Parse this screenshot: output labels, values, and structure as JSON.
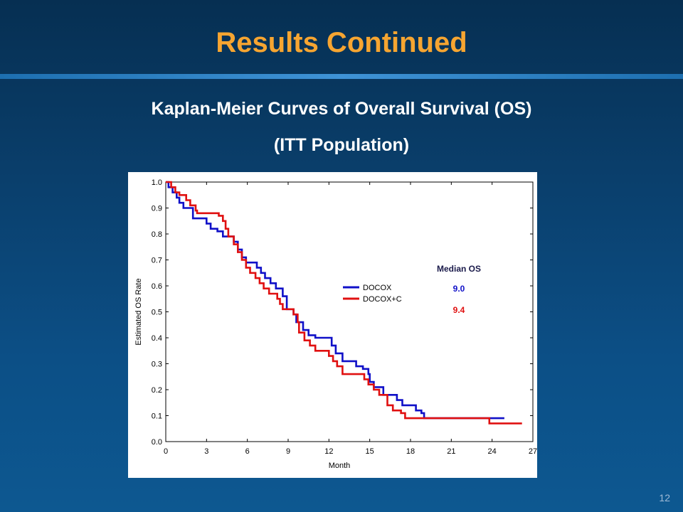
{
  "slide": {
    "title": "Results Continued",
    "subtitle_line1": "Kaplan-Meier Curves of Overall Survival (OS)",
    "subtitle_line2": "(ITT Population)",
    "page_number": "12"
  },
  "colors": {
    "title": "#f6a531",
    "docox": "#1010c8",
    "docox_c": "#e01010"
  },
  "chart_data": {
    "type": "line",
    "step": true,
    "xlabel": "Month",
    "ylabel": "Estimated OS Rate",
    "xlim": [
      0,
      27
    ],
    "ylim": [
      0,
      1
    ],
    "xticks": [
      "0",
      "3",
      "6",
      "9",
      "12",
      "15",
      "18",
      "21",
      "24",
      "27"
    ],
    "yticks": [
      "0.0",
      "0.1",
      "0.2",
      "0.3",
      "0.4",
      "0.5",
      "0.6",
      "0.7",
      "0.8",
      "0.9",
      "1.0"
    ],
    "legend": {
      "position": "right-middle",
      "median_header": "Median OS"
    },
    "series": [
      {
        "name": "DOCOX",
        "median": "9.0",
        "color": "#1010c8",
        "points": [
          [
            0,
            1.0
          ],
          [
            0.2,
            0.98
          ],
          [
            0.5,
            0.96
          ],
          [
            0.8,
            0.94
          ],
          [
            1.0,
            0.92
          ],
          [
            1.3,
            0.9
          ],
          [
            2.0,
            0.86
          ],
          [
            3.0,
            0.84
          ],
          [
            3.3,
            0.82
          ],
          [
            3.8,
            0.81
          ],
          [
            4.2,
            0.79
          ],
          [
            5.0,
            0.77
          ],
          [
            5.3,
            0.74
          ],
          [
            5.6,
            0.71
          ],
          [
            5.9,
            0.69
          ],
          [
            6.7,
            0.67
          ],
          [
            7.0,
            0.65
          ],
          [
            7.3,
            0.63
          ],
          [
            7.7,
            0.61
          ],
          [
            8.1,
            0.59
          ],
          [
            8.6,
            0.56
          ],
          [
            8.9,
            0.51
          ],
          [
            9.4,
            0.49
          ],
          [
            9.6,
            0.46
          ],
          [
            10.1,
            0.43
          ],
          [
            10.5,
            0.41
          ],
          [
            11.0,
            0.4
          ],
          [
            12.2,
            0.37
          ],
          [
            12.5,
            0.34
          ],
          [
            13.0,
            0.31
          ],
          [
            14.0,
            0.29
          ],
          [
            14.5,
            0.28
          ],
          [
            14.9,
            0.26
          ],
          [
            15.0,
            0.23
          ],
          [
            15.3,
            0.21
          ],
          [
            16.0,
            0.18
          ],
          [
            17.0,
            0.16
          ],
          [
            17.4,
            0.14
          ],
          [
            18.4,
            0.12
          ],
          [
            18.8,
            0.11
          ],
          [
            19.0,
            0.09
          ],
          [
            24.9,
            0.09
          ]
        ]
      },
      {
        "name": "DOCOX+C",
        "median": "9.4",
        "color": "#e01010",
        "points": [
          [
            0,
            1.0
          ],
          [
            0.4,
            0.98
          ],
          [
            0.7,
            0.96
          ],
          [
            1.0,
            0.95
          ],
          [
            1.5,
            0.93
          ],
          [
            1.8,
            0.91
          ],
          [
            2.2,
            0.89
          ],
          [
            2.3,
            0.88
          ],
          [
            3.9,
            0.87
          ],
          [
            4.2,
            0.85
          ],
          [
            4.4,
            0.82
          ],
          [
            4.6,
            0.79
          ],
          [
            5.0,
            0.76
          ],
          [
            5.3,
            0.73
          ],
          [
            5.6,
            0.7
          ],
          [
            5.9,
            0.67
          ],
          [
            6.2,
            0.65
          ],
          [
            6.6,
            0.63
          ],
          [
            6.9,
            0.61
          ],
          [
            7.2,
            0.59
          ],
          [
            7.6,
            0.57
          ],
          [
            8.2,
            0.55
          ],
          [
            8.4,
            0.53
          ],
          [
            8.6,
            0.51
          ],
          [
            9.4,
            0.49
          ],
          [
            9.7,
            0.46
          ],
          [
            9.8,
            0.42
          ],
          [
            10.2,
            0.39
          ],
          [
            10.6,
            0.37
          ],
          [
            11.0,
            0.35
          ],
          [
            12.0,
            0.33
          ],
          [
            12.3,
            0.31
          ],
          [
            12.6,
            0.29
          ],
          [
            13.0,
            0.26
          ],
          [
            14.6,
            0.24
          ],
          [
            14.9,
            0.22
          ],
          [
            15.3,
            0.2
          ],
          [
            15.7,
            0.18
          ],
          [
            16.3,
            0.14
          ],
          [
            16.7,
            0.12
          ],
          [
            17.3,
            0.11
          ],
          [
            17.6,
            0.09
          ],
          [
            23.8,
            0.07
          ],
          [
            26.2,
            0.07
          ]
        ]
      }
    ]
  }
}
